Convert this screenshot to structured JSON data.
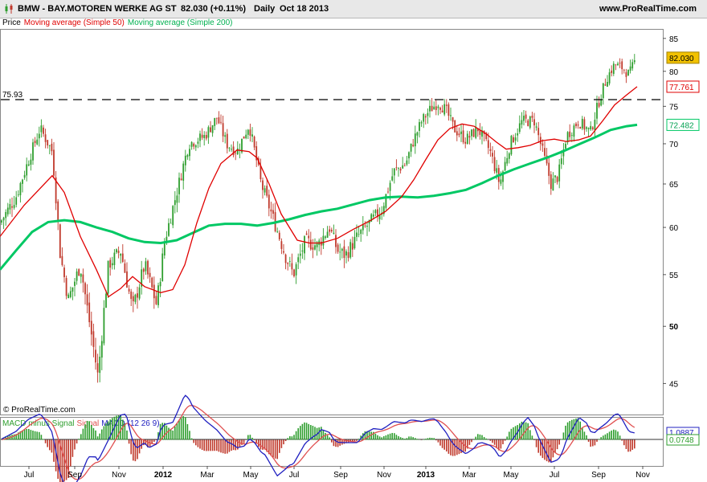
{
  "header": {
    "symbol": "BMW - BAY.MOTOREN WERKE AG ST",
    "last": "82.030 (+0.11%)",
    "period": "Daily",
    "date": "Oct 18 2013",
    "site": "www.ProRealTime.com"
  },
  "legend": {
    "price": "Price",
    "ma50": "Moving average (Simple 50)",
    "ma200": "Moving average (Simple 200)"
  },
  "watermark": "© ProRealTime.com",
  "macd_legend": {
    "hist": "MACD minus Signal",
    "signal": "Signal",
    "macd": "MACD (12 26 9)"
  },
  "colors": {
    "up": "#2e9e2e",
    "down": "#c0392b",
    "ma50": "#e00000",
    "ma200": "#00c864",
    "macd": "#2020c0",
    "signal": "#e05050",
    "label_price_bg": "#f2c200"
  },
  "chart_data": [
    {
      "type": "candlestick",
      "title": "BMW - BAY.MOTOREN WERKE AG ST",
      "y_ticks": [
        45,
        50,
        55,
        60,
        65,
        70,
        75,
        80,
        85
      ],
      "ylim": [
        42.5,
        86.5
      ],
      "x_ticks": [
        "Jul",
        "Sep",
        "Nov",
        "2012",
        "Mar",
        "May",
        "Jul",
        "Sep",
        "Nov",
        "2013",
        "Mar",
        "May",
        "Jul",
        "Sep",
        "Nov"
      ],
      "ref_line": {
        "value": 75.93,
        "label": "75.93"
      },
      "last_labels": {
        "price": "82.030",
        "ma50": "77.761",
        "ma200": "72.482"
      },
      "price_path": [
        [
          0,
          60.5
        ],
        [
          20,
          63.5
        ],
        [
          50,
          72.0
        ],
        [
          65,
          69.0
        ],
        [
          75,
          57.0
        ],
        [
          85,
          52.5
        ],
        [
          100,
          56.0
        ],
        [
          110,
          51.0
        ],
        [
          122,
          45.5
        ],
        [
          135,
          56.0
        ],
        [
          150,
          57.5
        ],
        [
          165,
          51.5
        ],
        [
          180,
          56.0
        ],
        [
          195,
          52.0
        ],
        [
          205,
          58.5
        ],
        [
          220,
          64.0
        ],
        [
          235,
          70.0
        ],
        [
          255,
          71.0
        ],
        [
          270,
          73.5
        ],
        [
          282,
          70.0
        ],
        [
          295,
          69.0
        ],
        [
          310,
          72.5
        ],
        [
          325,
          65.0
        ],
        [
          340,
          61.0
        ],
        [
          355,
          57.0
        ],
        [
          365,
          55.0
        ],
        [
          380,
          58.5
        ],
        [
          395,
          58.0
        ],
        [
          410,
          60.0
        ],
        [
          420,
          57.5
        ],
        [
          430,
          57.0
        ],
        [
          445,
          59.0
        ],
        [
          460,
          60.5
        ],
        [
          475,
          62.0
        ],
        [
          490,
          66.5
        ],
        [
          505,
          67.5
        ],
        [
          515,
          70.5
        ],
        [
          525,
          73.0
        ],
        [
          535,
          74.5
        ],
        [
          545,
          75.5
        ],
        [
          555,
          74.5
        ],
        [
          565,
          72.0
        ],
        [
          580,
          70.5
        ],
        [
          595,
          72.0
        ],
        [
          610,
          69.0
        ],
        [
          622,
          65.0
        ],
        [
          635,
          70.0
        ],
        [
          650,
          73.0
        ],
        [
          665,
          73.0
        ],
        [
          678,
          68.0
        ],
        [
          686,
          65.0
        ],
        [
          695,
          66.0
        ],
        [
          705,
          71.0
        ],
        [
          720,
          73.0
        ],
        [
          735,
          71.5
        ],
        [
          745,
          75.5
        ],
        [
          755,
          79.0
        ],
        [
          765,
          81.0
        ],
        [
          775,
          80.5
        ],
        [
          783,
          79.5
        ],
        [
          792,
          82.0
        ]
      ],
      "ma50": [
        [
          0,
          59.0
        ],
        [
          30,
          62.5
        ],
        [
          65,
          66.0
        ],
        [
          80,
          64.0
        ],
        [
          100,
          59.0
        ],
        [
          120,
          55.5
        ],
        [
          135,
          52.8
        ],
        [
          150,
          53.6
        ],
        [
          165,
          54.8
        ],
        [
          180,
          53.8
        ],
        [
          200,
          53.2
        ],
        [
          215,
          53.5
        ],
        [
          230,
          56.0
        ],
        [
          245,
          60.5
        ],
        [
          260,
          64.5
        ],
        [
          275,
          67.5
        ],
        [
          295,
          69.2
        ],
        [
          310,
          69.0
        ],
        [
          320,
          68.2
        ],
        [
          335,
          65.0
        ],
        [
          350,
          61.5
        ],
        [
          370,
          58.6
        ],
        [
          385,
          58.3
        ],
        [
          400,
          58.3
        ],
        [
          420,
          58.8
        ],
        [
          440,
          59.8
        ],
        [
          460,
          60.7
        ],
        [
          480,
          61.8
        ],
        [
          500,
          63.5
        ],
        [
          515,
          65.5
        ],
        [
          530,
          68.0
        ],
        [
          545,
          70.5
        ],
        [
          560,
          72.0
        ],
        [
          575,
          72.6
        ],
        [
          590,
          72.3
        ],
        [
          605,
          71.3
        ],
        [
          618,
          70.2
        ],
        [
          630,
          69.3
        ],
        [
          645,
          69.5
        ],
        [
          660,
          69.8
        ],
        [
          675,
          70.4
        ],
        [
          690,
          70.6
        ],
        [
          705,
          70.3
        ],
        [
          720,
          70.5
        ],
        [
          735,
          71.0
        ],
        [
          750,
          73.0
        ],
        [
          765,
          75.2
        ],
        [
          780,
          76.6
        ],
        [
          793,
          77.76
        ]
      ],
      "ma200": [
        [
          0,
          55.5
        ],
        [
          20,
          57.5
        ],
        [
          40,
          59.5
        ],
        [
          60,
          60.6
        ],
        [
          80,
          60.8
        ],
        [
          100,
          60.6
        ],
        [
          120,
          60.0
        ],
        [
          140,
          59.5
        ],
        [
          160,
          58.8
        ],
        [
          180,
          58.4
        ],
        [
          200,
          58.3
        ],
        [
          220,
          58.6
        ],
        [
          240,
          59.4
        ],
        [
          260,
          60.2
        ],
        [
          280,
          60.4
        ],
        [
          300,
          60.4
        ],
        [
          320,
          60.2
        ],
        [
          340,
          60.5
        ],
        [
          360,
          60.9
        ],
        [
          380,
          61.4
        ],
        [
          400,
          61.8
        ],
        [
          420,
          62.1
        ],
        [
          440,
          62.6
        ],
        [
          460,
          63.1
        ],
        [
          480,
          63.4
        ],
        [
          500,
          63.5
        ],
        [
          520,
          63.4
        ],
        [
          540,
          63.6
        ],
        [
          560,
          63.9
        ],
        [
          580,
          64.3
        ],
        [
          600,
          65.1
        ],
        [
          620,
          66.0
        ],
        [
          640,
          66.8
        ],
        [
          660,
          67.5
        ],
        [
          680,
          68.2
        ],
        [
          700,
          69.0
        ],
        [
          720,
          69.9
        ],
        [
          740,
          70.8
        ],
        [
          760,
          71.8
        ],
        [
          780,
          72.3
        ],
        [
          793,
          72.48
        ]
      ]
    },
    {
      "type": "line",
      "title": "MACD (12 26 9)",
      "ylim": [
        -2.6,
        2.2
      ],
      "last_labels": {
        "macd": "1.0887",
        "hist": "0.0748"
      }
    }
  ]
}
